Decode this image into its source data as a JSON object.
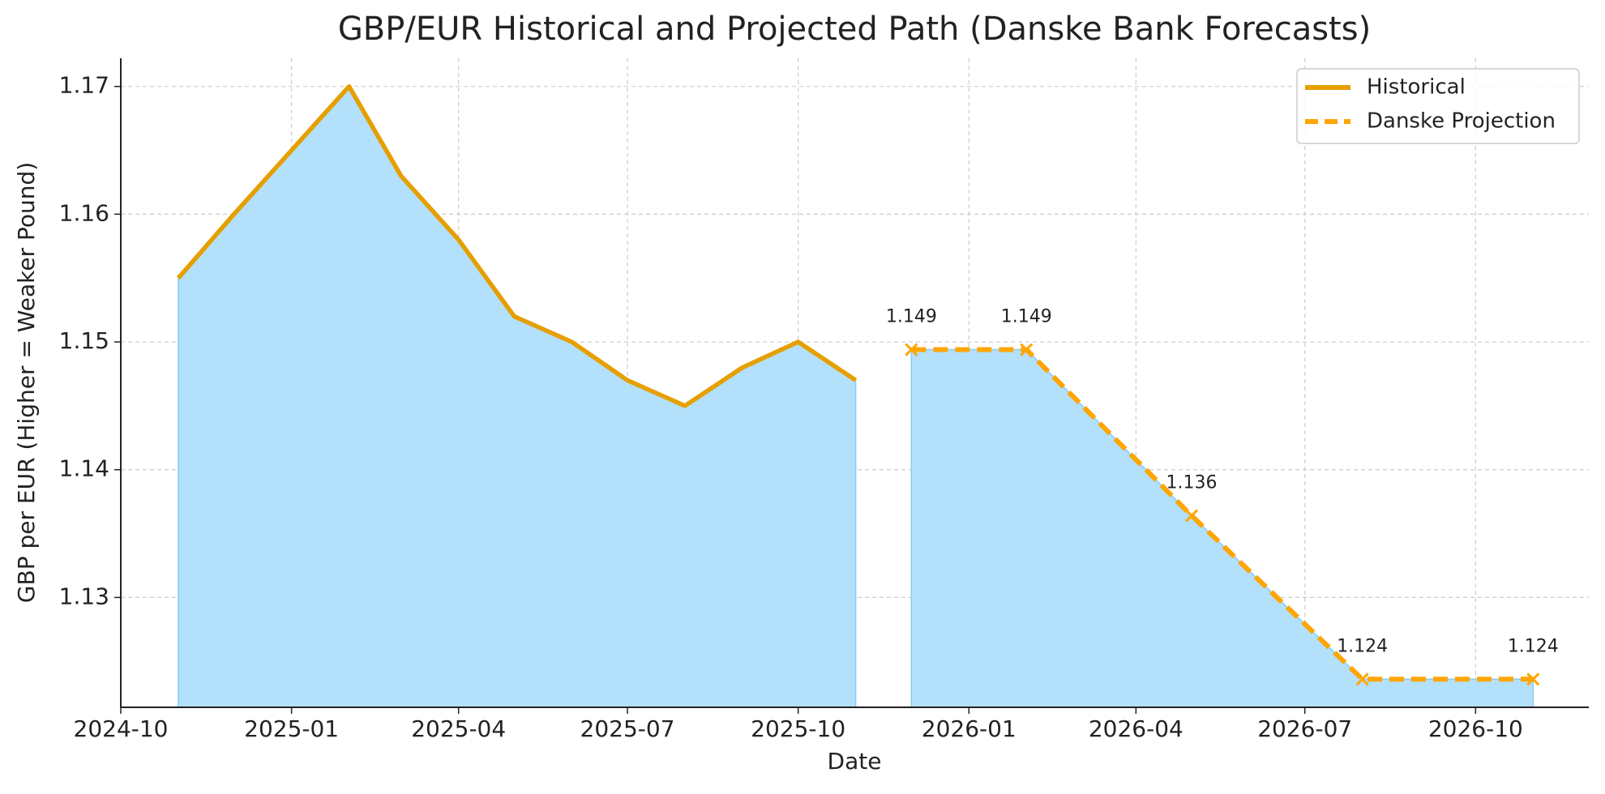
{
  "chart_data": {
    "type": "line",
    "title": "GBP/EUR Historical and Projected Path (Danske Bank Forecasts)",
    "x_label": "Date",
    "y_label": "GBP per EUR (Higher = Weaker Pound)",
    "xlim": [
      "2024-10",
      "2026-12"
    ],
    "xticks": [
      "2024-10",
      "2025-01",
      "2025-04",
      "2025-07",
      "2025-10",
      "2026-01",
      "2026-04",
      "2026-07",
      "2026-10"
    ],
    "ylim": [
      1.1214,
      1.1722
    ],
    "yticks": [
      1.13,
      1.14,
      1.15,
      1.16,
      1.17
    ],
    "grid": true,
    "legend_position": "upper-right",
    "fill_color": "#b3e0fa",
    "series": [
      {
        "name": "Historical",
        "color": "#e69f00",
        "dashed": false,
        "x": [
          "2024-11",
          "2024-12",
          "2025-01",
          "2025-02",
          "2025-03",
          "2025-04",
          "2025-05",
          "2025-06",
          "2025-07",
          "2025-08",
          "2025-09",
          "2025-10",
          "2025-11"
        ],
        "values": [
          1.155,
          1.16,
          1.165,
          1.17,
          1.163,
          1.158,
          1.152,
          1.15,
          1.147,
          1.145,
          1.148,
          1.15,
          1.147
        ]
      },
      {
        "name": "Danske Projection",
        "color": "#ffa500",
        "dashed": true,
        "marker": "x",
        "x": [
          "2025-12",
          "2026-02",
          "2026-05",
          "2026-08",
          "2026-11"
        ],
        "values": [
          1.1494,
          1.1494,
          1.1364,
          1.1236,
          1.1236
        ],
        "value_labels": [
          "1.149",
          "1.149",
          "1.136",
          "1.124",
          "1.124"
        ]
      }
    ]
  }
}
